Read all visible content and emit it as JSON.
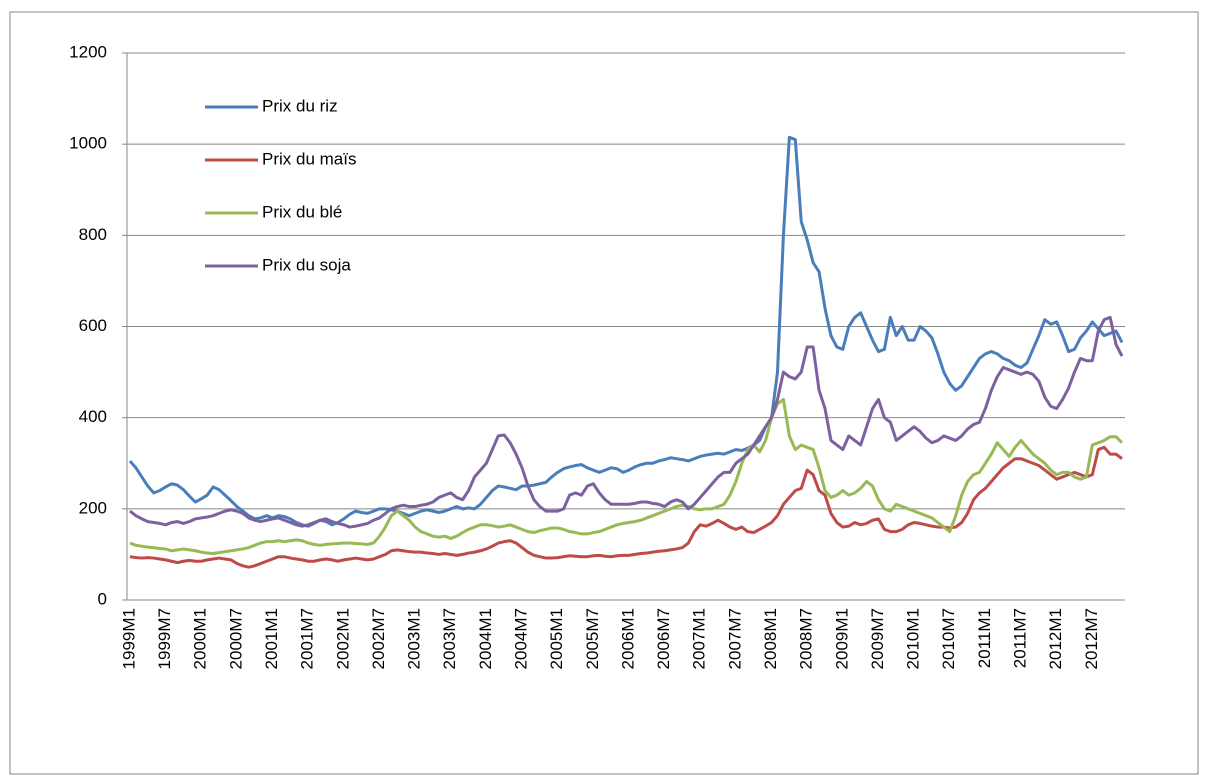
{
  "chart_data": {
    "type": "line",
    "categories": [
      "1999M1",
      null,
      null,
      null,
      null,
      null,
      "1999M7",
      null,
      null,
      null,
      null,
      null,
      "2000M1",
      null,
      null,
      null,
      null,
      null,
      "2000M7",
      null,
      null,
      null,
      null,
      null,
      "2001M1",
      null,
      null,
      null,
      null,
      null,
      "2001M7",
      null,
      null,
      null,
      null,
      null,
      "2002M1",
      null,
      null,
      null,
      null,
      null,
      "2002M7",
      null,
      null,
      null,
      null,
      null,
      "2003M1",
      null,
      null,
      null,
      null,
      null,
      "2003M7",
      null,
      null,
      null,
      null,
      null,
      "2004M1",
      null,
      null,
      null,
      null,
      null,
      "2004M7",
      null,
      null,
      null,
      null,
      null,
      "2005M1",
      null,
      null,
      null,
      null,
      null,
      "2005M7",
      null,
      null,
      null,
      null,
      null,
      "2006M1",
      null,
      null,
      null,
      null,
      null,
      "2006M7",
      null,
      null,
      null,
      null,
      null,
      "2007M1",
      null,
      null,
      null,
      null,
      null,
      "2007M7",
      null,
      null,
      null,
      null,
      null,
      "2008M1",
      null,
      null,
      null,
      null,
      null,
      "2008M7",
      null,
      null,
      null,
      null,
      null,
      "2009M1",
      null,
      null,
      null,
      null,
      null,
      "2009M7",
      null,
      null,
      null,
      null,
      null,
      "2010M1",
      null,
      null,
      null,
      null,
      null,
      "2010M7",
      null,
      null,
      null,
      null,
      null,
      "2011M1",
      null,
      null,
      null,
      null,
      null,
      "2011M7",
      null,
      null,
      null,
      null,
      null,
      "2012M1",
      null,
      null,
      null,
      null,
      null,
      "2012M7",
      null,
      null,
      null,
      null,
      null
    ],
    "series": [
      {
        "name": "Prix du riz",
        "color": "#4a7ebb",
        "values": [
          305,
          290,
          270,
          250,
          235,
          240,
          248,
          255,
          252,
          242,
          228,
          215,
          222,
          230,
          248,
          242,
          230,
          218,
          205,
          195,
          185,
          178,
          180,
          185,
          180,
          185,
          183,
          178,
          170,
          165,
          162,
          168,
          175,
          172,
          165,
          170,
          178,
          188,
          195,
          192,
          190,
          195,
          200,
          200,
          198,
          195,
          190,
          185,
          190,
          195,
          198,
          195,
          192,
          195,
          200,
          205,
          200,
          202,
          200,
          210,
          225,
          240,
          250,
          248,
          245,
          242,
          250,
          250,
          252,
          255,
          258,
          270,
          280,
          288,
          292,
          295,
          297,
          290,
          285,
          280,
          285,
          290,
          288,
          280,
          285,
          292,
          297,
          300,
          300,
          305,
          308,
          312,
          310,
          308,
          305,
          310,
          315,
          318,
          320,
          322,
          320,
          325,
          330,
          328,
          333,
          340,
          350,
          380,
          400,
          500,
          800,
          1015,
          1010,
          830,
          790,
          740,
          720,
          640,
          580,
          555,
          550,
          600,
          620,
          630,
          600,
          570,
          545,
          550,
          620,
          580,
          600,
          570,
          570,
          600,
          590,
          575,
          540,
          500,
          475,
          460,
          470,
          490,
          510,
          530,
          540,
          545,
          540,
          530,
          525,
          515,
          510,
          520,
          550,
          580,
          615,
          605,
          610,
          580,
          545,
          550,
          575,
          590,
          610,
          595,
          580,
          585,
          590,
          565
        ]
      },
      {
        "name": "Prix du maïs",
        "color": "#be4b48",
        "values": [
          95,
          93,
          92,
          93,
          92,
          90,
          88,
          85,
          82,
          85,
          87,
          85,
          85,
          88,
          90,
          92,
          90,
          88,
          80,
          75,
          72,
          75,
          80,
          85,
          90,
          95,
          95,
          92,
          90,
          88,
          85,
          85,
          88,
          90,
          88,
          85,
          88,
          90,
          92,
          90,
          88,
          90,
          95,
          100,
          108,
          110,
          108,
          106,
          105,
          105,
          103,
          102,
          100,
          102,
          100,
          98,
          100,
          103,
          105,
          108,
          112,
          118,
          125,
          128,
          130,
          125,
          115,
          105,
          98,
          95,
          92,
          92,
          93,
          95,
          97,
          96,
          95,
          95,
          97,
          98,
          96,
          95,
          97,
          98,
          98,
          100,
          102,
          103,
          105,
          107,
          108,
          110,
          112,
          115,
          125,
          150,
          165,
          162,
          168,
          175,
          168,
          160,
          155,
          160,
          150,
          148,
          155,
          162,
          170,
          185,
          210,
          225,
          240,
          245,
          285,
          275,
          240,
          230,
          190,
          170,
          160,
          162,
          170,
          165,
          168,
          175,
          178,
          155,
          150,
          150,
          155,
          165,
          170,
          168,
          165,
          162,
          160,
          160,
          158,
          160,
          170,
          190,
          220,
          235,
          245,
          260,
          275,
          290,
          300,
          310,
          310,
          305,
          300,
          295,
          285,
          275,
          265,
          270,
          275,
          280,
          275,
          270,
          275,
          330,
          335,
          320,
          320,
          310
        ]
      },
      {
        "name": "Prix du blé",
        "color": "#98b954",
        "values": [
          125,
          120,
          118,
          116,
          115,
          113,
          112,
          108,
          110,
          112,
          110,
          108,
          105,
          103,
          102,
          104,
          106,
          108,
          110,
          112,
          115,
          120,
          125,
          128,
          128,
          130,
          128,
          130,
          132,
          130,
          125,
          122,
          120,
          122,
          123,
          124,
          125,
          125,
          124,
          123,
          122,
          125,
          140,
          160,
          185,
          195,
          185,
          175,
          160,
          150,
          145,
          140,
          138,
          140,
          135,
          140,
          148,
          155,
          160,
          165,
          165,
          163,
          160,
          162,
          165,
          160,
          155,
          150,
          148,
          152,
          155,
          158,
          158,
          155,
          150,
          148,
          145,
          145,
          148,
          150,
          155,
          160,
          165,
          168,
          170,
          172,
          175,
          180,
          185,
          190,
          195,
          200,
          205,
          208,
          205,
          200,
          198,
          200,
          200,
          205,
          210,
          230,
          260,
          300,
          330,
          340,
          325,
          350,
          400,
          430,
          440,
          360,
          330,
          340,
          335,
          330,
          290,
          240,
          225,
          230,
          240,
          230,
          235,
          245,
          260,
          250,
          220,
          200,
          195,
          210,
          205,
          200,
          195,
          190,
          185,
          180,
          170,
          160,
          150,
          185,
          230,
          260,
          275,
          280,
          300,
          320,
          345,
          330,
          315,
          335,
          350,
          335,
          320,
          310,
          300,
          285,
          275,
          280,
          280,
          270,
          265,
          270,
          340,
          345,
          350,
          358,
          358,
          345
        ]
      },
      {
        "name": "Prix du soja",
        "color": "#7d60a0",
        "values": [
          195,
          185,
          178,
          172,
          170,
          168,
          165,
          170,
          172,
          168,
          172,
          178,
          180,
          182,
          185,
          190,
          195,
          198,
          195,
          190,
          180,
          175,
          172,
          175,
          178,
          180,
          175,
          170,
          165,
          162,
          165,
          170,
          175,
          178,
          172,
          168,
          165,
          160,
          162,
          165,
          168,
          175,
          180,
          190,
          200,
          205,
          208,
          205,
          205,
          208,
          210,
          215,
          225,
          230,
          235,
          225,
          220,
          240,
          270,
          285,
          300,
          330,
          360,
          362,
          345,
          320,
          290,
          250,
          220,
          205,
          195,
          195,
          195,
          200,
          230,
          235,
          230,
          250,
          255,
          235,
          220,
          210,
          210,
          210,
          210,
          212,
          215,
          215,
          212,
          210,
          205,
          215,
          220,
          215,
          200,
          210,
          225,
          240,
          255,
          270,
          280,
          280,
          300,
          310,
          320,
          340,
          360,
          380,
          400,
          440,
          500,
          490,
          485,
          500,
          555,
          555,
          460,
          420,
          350,
          340,
          330,
          360,
          350,
          340,
          380,
          420,
          440,
          400,
          390,
          350,
          360,
          370,
          380,
          370,
          355,
          345,
          350,
          360,
          355,
          350,
          360,
          375,
          385,
          390,
          420,
          460,
          490,
          510,
          505,
          500,
          495,
          500,
          495,
          480,
          445,
          425,
          420,
          440,
          465,
          500,
          530,
          525,
          525,
          590,
          615,
          620,
          560,
          535
        ]
      }
    ],
    "ylim": [
      0,
      1200
    ],
    "yticks": [
      0,
      200,
      400,
      600,
      800,
      1000,
      1200
    ],
    "grid": true,
    "legend": "top-left"
  }
}
